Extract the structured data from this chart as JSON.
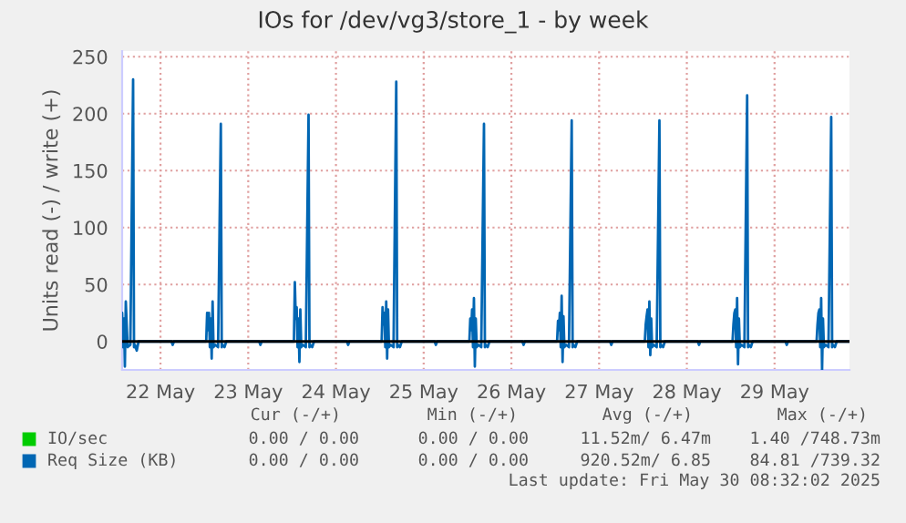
{
  "chart_data": {
    "type": "line",
    "title": "IOs for /dev/vg3/store_1 - by week",
    "ylabel": "Units read (-) / write (+)",
    "xlim": [
      "2025-05-22T01:30",
      "2025-05-30T08:30"
    ],
    "xticks": [
      {
        "value": "2025-05-22T12:00",
        "label": "22 May"
      },
      {
        "value": "2025-05-23T12:00",
        "label": "23 May"
      },
      {
        "value": "2025-05-24T12:00",
        "label": "24 May"
      },
      {
        "value": "2025-05-25T12:00",
        "label": "25 May"
      },
      {
        "value": "2025-05-26T12:00",
        "label": "26 May"
      },
      {
        "value": "2025-05-27T12:00",
        "label": "27 May"
      },
      {
        "value": "2025-05-28T12:00",
        "label": "28 May"
      },
      {
        "value": "2025-05-29T12:00",
        "label": "29 May"
      }
    ],
    "ylim": [
      -25,
      255
    ],
    "yticks": [
      0,
      50,
      100,
      150,
      200,
      250
    ],
    "grid": true,
    "legend": "bottom",
    "ref_lines": [
      {
        "axis": "y",
        "value": 0,
        "color": "#000000"
      }
    ],
    "series": [
      {
        "name": "IO/sec",
        "color": "#00cc00"
      },
      {
        "name": "Req Size (KB)",
        "color": "#0066b3",
        "x": [
          "2025-05-22T01:30",
          "2025-05-22T01:45",
          "2025-05-22T02:00",
          "2025-05-22T02:15",
          "2025-05-22T02:30",
          "2025-05-22T03:00",
          "2025-05-22T03:45",
          "2025-05-22T04:30",
          "2025-05-22T04:45",
          "2025-05-22T05:00",
          "2025-05-22T05:30",
          "2025-05-22T06:00",
          "2025-05-22T15:00",
          "2025-05-22T15:20",
          "2025-05-22T15:40",
          "2025-05-23T00:30",
          "2025-05-23T00:45",
          "2025-05-23T01:00",
          "2025-05-23T01:15",
          "2025-05-23T01:30",
          "2025-05-23T01:45",
          "2025-05-23T02:00",
          "2025-05-23T02:15",
          "2025-05-23T02:30",
          "2025-05-23T03:00",
          "2025-05-23T03:45",
          "2025-05-23T04:30",
          "2025-05-23T04:45",
          "2025-05-23T05:00",
          "2025-05-23T05:30",
          "2025-05-23T06:00",
          "2025-05-23T15:00",
          "2025-05-23T15:20",
          "2025-05-23T15:40",
          "2025-05-24T00:30",
          "2025-05-24T00:45",
          "2025-05-24T01:00",
          "2025-05-24T01:15",
          "2025-05-24T01:30",
          "2025-05-24T01:45",
          "2025-05-24T02:00",
          "2025-05-24T02:15",
          "2025-05-24T02:30",
          "2025-05-24T03:00",
          "2025-05-24T03:45",
          "2025-05-24T04:30",
          "2025-05-24T04:45",
          "2025-05-24T05:00",
          "2025-05-24T05:30",
          "2025-05-24T06:00",
          "2025-05-24T15:00",
          "2025-05-24T15:20",
          "2025-05-24T15:40",
          "2025-05-25T00:30",
          "2025-05-25T00:45",
          "2025-05-25T01:00",
          "2025-05-25T01:15",
          "2025-05-25T01:30",
          "2025-05-25T01:45",
          "2025-05-25T02:00",
          "2025-05-25T02:15",
          "2025-05-25T02:30",
          "2025-05-25T03:00",
          "2025-05-25T03:45",
          "2025-05-25T04:30",
          "2025-05-25T04:45",
          "2025-05-25T05:00",
          "2025-05-25T05:30",
          "2025-05-25T06:00",
          "2025-05-25T15:00",
          "2025-05-25T15:20",
          "2025-05-25T15:40",
          "2025-05-26T00:30",
          "2025-05-26T00:45",
          "2025-05-26T01:00",
          "2025-05-26T01:15",
          "2025-05-26T01:30",
          "2025-05-26T01:45",
          "2025-05-26T02:00",
          "2025-05-26T02:15",
          "2025-05-26T02:30",
          "2025-05-26T03:00",
          "2025-05-26T03:45",
          "2025-05-26T04:30",
          "2025-05-26T04:45",
          "2025-05-26T05:00",
          "2025-05-26T05:30",
          "2025-05-26T06:00",
          "2025-05-26T15:00",
          "2025-05-26T15:20",
          "2025-05-26T15:40",
          "2025-05-27T00:30",
          "2025-05-27T00:45",
          "2025-05-27T01:00",
          "2025-05-27T01:15",
          "2025-05-27T01:30",
          "2025-05-27T01:45",
          "2025-05-27T02:00",
          "2025-05-27T02:15",
          "2025-05-27T02:30",
          "2025-05-27T03:00",
          "2025-05-27T03:45",
          "2025-05-27T04:30",
          "2025-05-27T04:45",
          "2025-05-27T05:00",
          "2025-05-27T05:30",
          "2025-05-27T06:00",
          "2025-05-27T15:00",
          "2025-05-27T15:20",
          "2025-05-27T15:40",
          "2025-05-28T00:30",
          "2025-05-28T00:45",
          "2025-05-28T01:00",
          "2025-05-28T01:15",
          "2025-05-28T01:30",
          "2025-05-28T01:45",
          "2025-05-28T02:00",
          "2025-05-28T02:15",
          "2025-05-28T02:30",
          "2025-05-28T03:00",
          "2025-05-28T03:45",
          "2025-05-28T04:30",
          "2025-05-28T04:45",
          "2025-05-28T05:00",
          "2025-05-28T05:30",
          "2025-05-28T06:00",
          "2025-05-28T15:00",
          "2025-05-28T15:20",
          "2025-05-28T15:40",
          "2025-05-29T00:30",
          "2025-05-29T00:45",
          "2025-05-29T01:00",
          "2025-05-29T01:15",
          "2025-05-29T01:30",
          "2025-05-29T01:45",
          "2025-05-29T02:00",
          "2025-05-29T02:15",
          "2025-05-29T02:30",
          "2025-05-29T03:00",
          "2025-05-29T03:45",
          "2025-05-29T04:30",
          "2025-05-29T04:45",
          "2025-05-29T05:00",
          "2025-05-29T05:30",
          "2025-05-29T06:00",
          "2025-05-29T15:00",
          "2025-05-29T15:20",
          "2025-05-29T15:40",
          "2025-05-29T23:30",
          "2025-05-29T23:45",
          "2025-05-30T00:00",
          "2025-05-30T00:15",
          "2025-05-30T00:30",
          "2025-05-30T00:45",
          "2025-05-30T01:00",
          "2025-05-30T01:15",
          "2025-05-30T01:30",
          "2025-05-30T02:00",
          "2025-05-30T02:45",
          "2025-05-30T03:30",
          "2025-05-30T03:45",
          "2025-05-30T04:00",
          "2025-05-30T04:30",
          "2025-05-30T05:00",
          "2025-05-30T06:00",
          "2025-05-30T08:30"
        ],
        "values": [
          25,
          -5,
          20,
          -22,
          35,
          -5,
          -3,
          230,
          -5,
          -3,
          -8,
          0,
          0,
          -3,
          0,
          0,
          25,
          10,
          25,
          -5,
          20,
          -15,
          35,
          -5,
          -3,
          -5,
          191,
          -5,
          -3,
          -5,
          0,
          0,
          -3,
          0,
          0,
          52,
          20,
          30,
          -5,
          20,
          -18,
          28,
          -5,
          -3,
          -5,
          199,
          -5,
          -3,
          -5,
          0,
          0,
          -3,
          0,
          0,
          30,
          15,
          25,
          -5,
          35,
          -15,
          28,
          -5,
          -3,
          -5,
          228,
          -5,
          -3,
          -5,
          0,
          0,
          -3,
          0,
          0,
          20,
          10,
          28,
          -5,
          38,
          -22,
          20,
          -5,
          -3,
          -5,
          191,
          -5,
          -3,
          -5,
          0,
          0,
          -3,
          0,
          0,
          18,
          10,
          25,
          -5,
          40,
          -18,
          22,
          -5,
          -3,
          -5,
          194,
          -5,
          -3,
          -5,
          0,
          0,
          -3,
          0,
          0,
          15,
          22,
          28,
          -5,
          35,
          -12,
          20,
          -5,
          -3,
          -5,
          194,
          -5,
          -3,
          -5,
          0,
          0,
          -3,
          0,
          0,
          15,
          25,
          28,
          -5,
          38,
          -20,
          20,
          -5,
          -3,
          -5,
          216,
          -5,
          -3,
          -5,
          0,
          0,
          -3,
          0,
          0,
          15,
          25,
          28,
          -5,
          38,
          -25,
          20,
          -5,
          -3,
          -5,
          197,
          -5,
          -3,
          -5,
          0,
          0,
          0
        ]
      }
    ],
    "annotations": [
      "Cur (-/+)",
      "Min (-/+)",
      "Avg (-/+)",
      "Max (-/+)",
      "0.00 / 0.00",
      "0.00 / 0.00",
      "11.52m/ 6.47m",
      "1.40 /748.73m",
      "0.00 / 0.00",
      "0.00 / 0.00",
      "920.52m/ 6.85",
      "84.81 /739.32",
      "Last update: Fri May 30 08:32:02 2025"
    ]
  }
}
